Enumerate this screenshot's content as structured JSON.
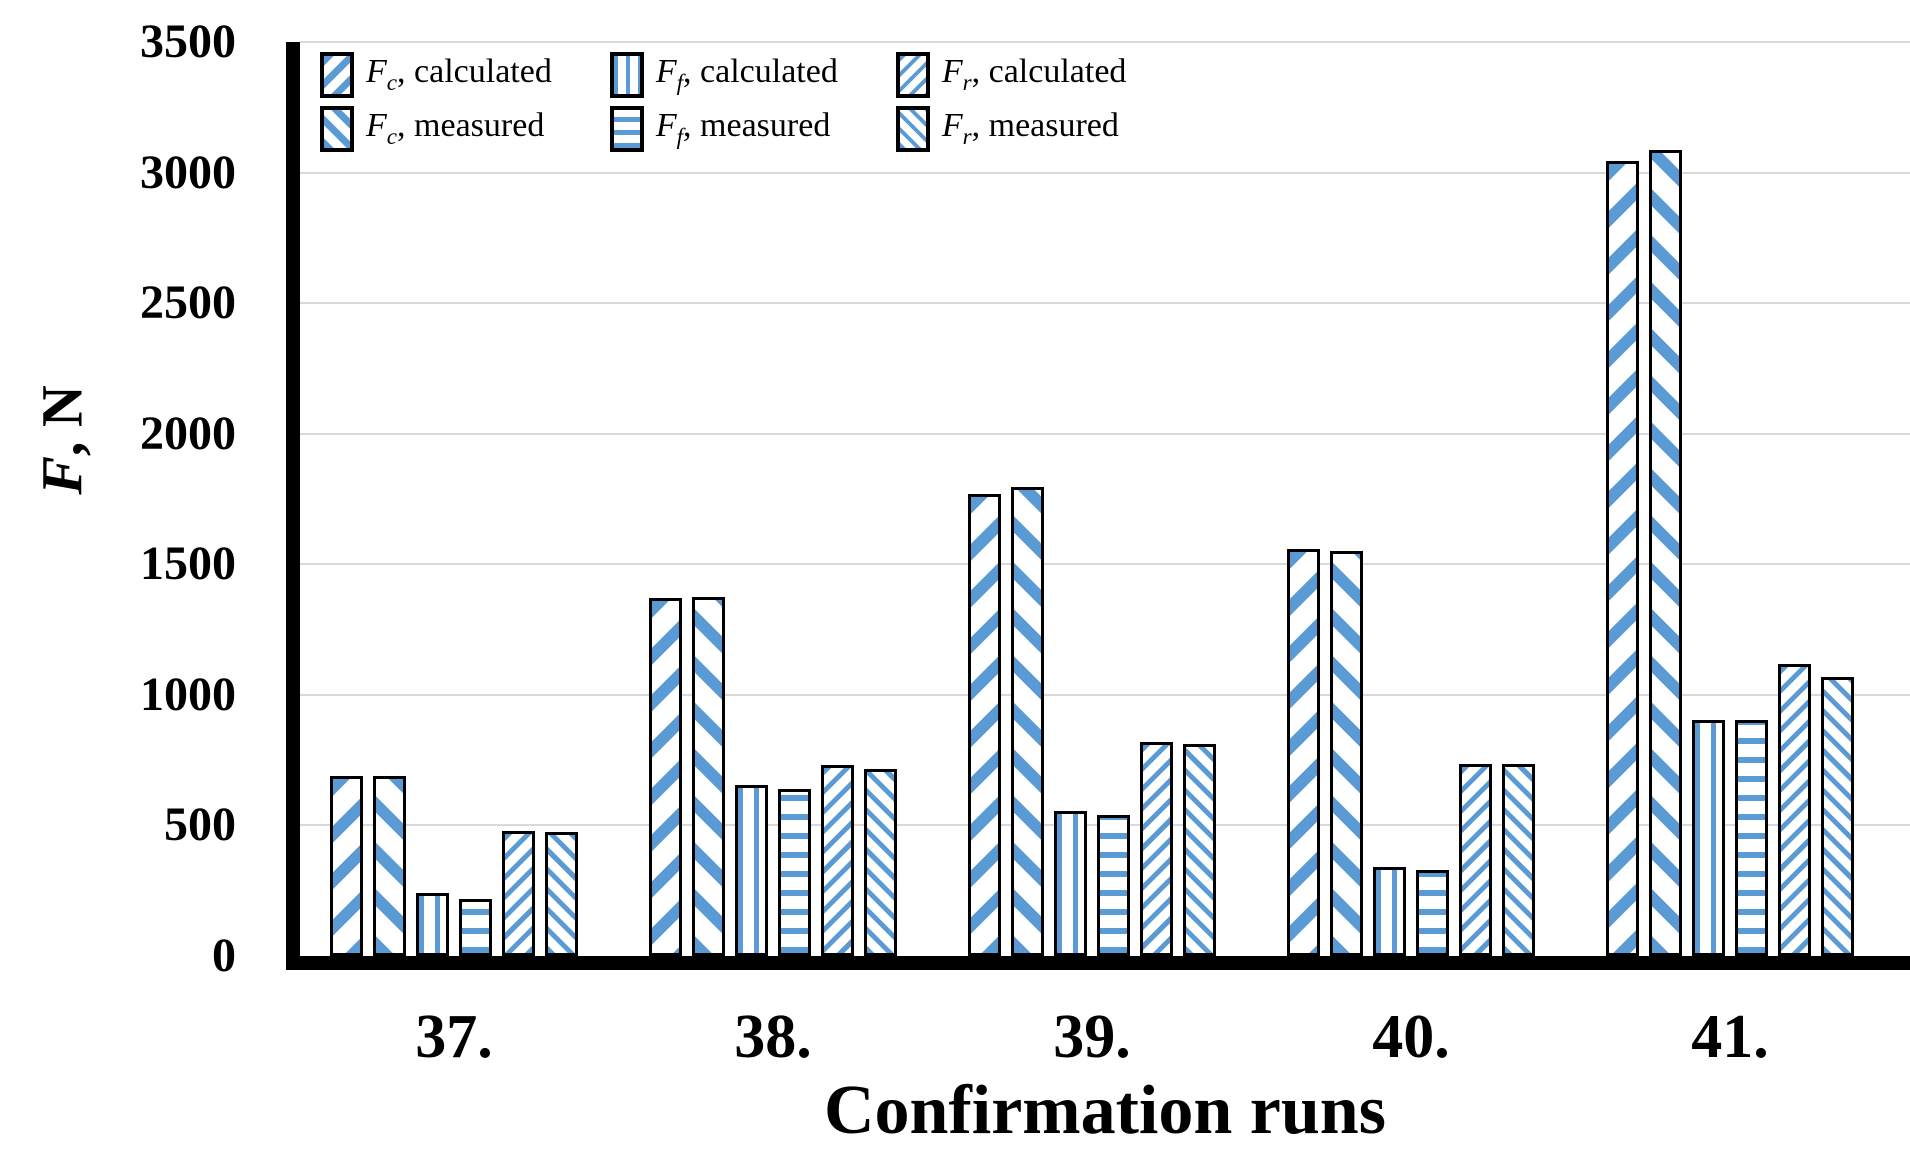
{
  "figure": {
    "y_axis_title_symbol": "F",
    "y_axis_title_rest": ", N",
    "x_axis_title": "Confirmation runs"
  },
  "colors": {
    "bar_fill": "#FFFFFF",
    "bar_hatch_blue": "#5B9BD5",
    "bar_border": "#000000",
    "gridline": "#D9D9D9",
    "axis": "#000000",
    "text": "#000000"
  },
  "chart_data": {
    "type": "bar",
    "title": "",
    "xlabel": "Confirmation runs",
    "ylabel": "F, N",
    "ylim": [
      0,
      3500
    ],
    "yticks": [
      0,
      500,
      1000,
      1500,
      2000,
      2500,
      3000,
      3500
    ],
    "grid": true,
    "legend_position": "inside-top-left, 2 rows x 3 columns",
    "categories": [
      "37.",
      "38.",
      "39.",
      "40.",
      "41."
    ],
    "series": [
      {
        "key": "fc-calculated",
        "name": "Fc, calculated",
        "symbol": "F",
        "subscript": "c",
        "label_rest": ", calculated",
        "pattern": "diag-up-wide",
        "values": [
          690,
          1370,
          1770,
          1560,
          3045
        ]
      },
      {
        "key": "fc-measured",
        "name": "Fc, measured",
        "symbol": "F",
        "subscript": "c",
        "label_rest": ", measured",
        "pattern": "diag-down-wide",
        "values": [
          690,
          1375,
          1795,
          1550,
          3085
        ]
      },
      {
        "key": "ff-calculated",
        "name": "Ff, calculated",
        "symbol": "F",
        "subscript": "f",
        "label_rest": ", calculated",
        "pattern": "vertical-lines",
        "values": [
          240,
          655,
          555,
          340,
          905
        ]
      },
      {
        "key": "ff-measured",
        "name": "Ff, measured",
        "symbol": "F",
        "subscript": "f",
        "label_rest": ", measured",
        "pattern": "horizontal-lines",
        "values": [
          220,
          640,
          540,
          330,
          905
        ]
      },
      {
        "key": "fr-calculated",
        "name": "Fr, calculated",
        "symbol": "F",
        "subscript": "r",
        "label_rest": ", calculated",
        "pattern": "diag-up-fine",
        "values": [
          480,
          730,
          820,
          735,
          1120
        ]
      },
      {
        "key": "fr-measured",
        "name": "Fr, measured",
        "symbol": "F",
        "subscript": "r",
        "label_rest": ", measured",
        "pattern": "diag-down-fine",
        "values": [
          475,
          715,
          810,
          735,
          1070
        ]
      }
    ]
  }
}
